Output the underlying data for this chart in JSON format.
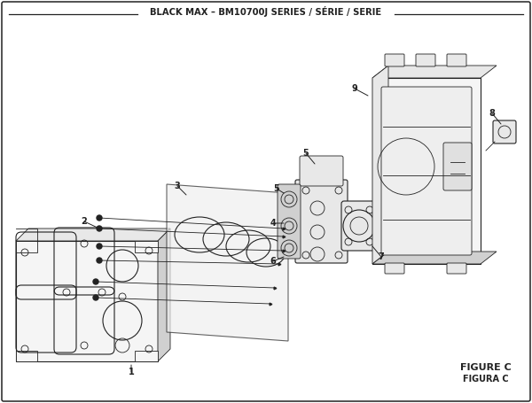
{
  "title": "BLACK MAX – BM10700J SERIES / SÉRIE / SERIE",
  "figure_label": "FIGURE C",
  "figura_label": "FIGURA C",
  "bg_color": "#ffffff",
  "lc": "#222222",
  "fc_light": "#f5f5f5",
  "fc_mid": "#e8e8e8",
  "fc_dark": "#d0d0d0"
}
